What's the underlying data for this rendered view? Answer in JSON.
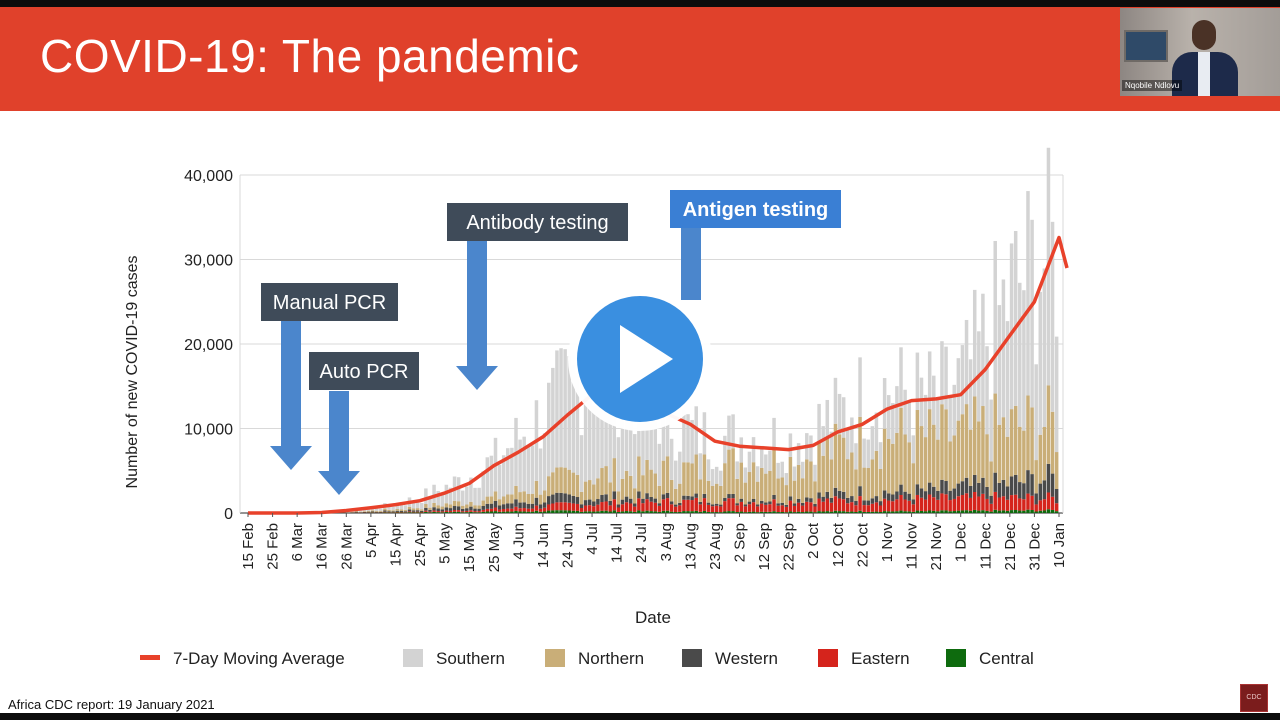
{
  "slide": {
    "title": "COVID-19: The pandemic",
    "footer": "Africa CDC report: 19 January 2021",
    "presenter_name": "Nqobile Ndlovu",
    "logo_text": "CDC"
  },
  "chart_data": {
    "type": "bar",
    "xlabel": "Date",
    "ylabel": "Number of new COVID-19 cases",
    "ylim": [
      0,
      40000
    ],
    "yticks": [
      "0",
      "10,000",
      "20,000",
      "30,000",
      "40,000"
    ],
    "categories": [
      "15 Feb",
      "25 Feb",
      "6 Mar",
      "16 Mar",
      "26 Mar",
      "5 Apr",
      "15 Apr",
      "25 Apr",
      "5 May",
      "15 May",
      "25 May",
      "4 Jun",
      "14 Jun",
      "24 Jun",
      "4 Jul",
      "14 Jul",
      "24 Jul",
      "3 Aug",
      "13 Aug",
      "23 Aug",
      "2 Sep",
      "12 Sep",
      "22 Sep",
      "2 Oct",
      "12 Oct",
      "22 Oct",
      "1 Nov",
      "11 Nov",
      "21 Nov",
      "1 Dec",
      "11 Dec",
      "21 Dec",
      "31 Dec",
      "10 Jan"
    ],
    "series": [
      {
        "name": "Southern",
        "values": [
          0,
          0,
          2,
          20,
          150,
          300,
          600,
          1200,
          2000,
          3000,
          4500,
          6500,
          8500,
          11000,
          12500,
          11500,
          9500,
          6500,
          4500,
          3200,
          3000,
          3000,
          2500,
          3500,
          4000,
          5500,
          5500,
          5000,
          5000,
          6500,
          11000,
          16000,
          19000,
          20000
        ]
      },
      {
        "name": "Northern",
        "values": [
          0,
          0,
          2,
          10,
          60,
          120,
          200,
          300,
          450,
          600,
          800,
          1300,
          1800,
          2400,
          2700,
          2800,
          2900,
          3200,
          3400,
          3800,
          4300,
          4500,
          4200,
          4800,
          5600,
          6200,
          6800,
          6500,
          6300,
          6300,
          6600,
          6500,
          6600,
          6300
        ]
      },
      {
        "name": "Western",
        "values": [
          0,
          0,
          1,
          10,
          40,
          80,
          130,
          220,
          350,
          450,
          550,
          700,
          800,
          800,
          750,
          650,
          550,
          450,
          380,
          380,
          380,
          380,
          450,
          550,
          750,
          900,
          900,
          900,
          1100,
          1300,
          1500,
          1800,
          2200,
          2500
        ]
      },
      {
        "name": "Eastern",
        "values": [
          0,
          0,
          1,
          5,
          20,
          40,
          60,
          100,
          150,
          200,
          300,
          400,
          550,
          750,
          850,
          950,
          1000,
          1100,
          1150,
          1200,
          1150,
          1100,
          1150,
          1200,
          1250,
          1300,
          1350,
          1350,
          1400,
          1450,
          1500,
          1450,
          1400,
          1350
        ]
      },
      {
        "name": "Central",
        "values": [
          0,
          0,
          0,
          5,
          20,
          40,
          60,
          90,
          110,
          140,
          160,
          190,
          230,
          240,
          230,
          220,
          210,
          200,
          190,
          180,
          170,
          170,
          170,
          180,
          190,
          200,
          210,
          210,
          220,
          240,
          260,
          280,
          300,
          320
        ]
      }
    ],
    "moving_average": {
      "name": "7-Day Moving Average",
      "values": [
        0,
        0,
        0,
        60,
        300,
        620,
        1000,
        1450,
        2350,
        3500,
        5600,
        7200,
        9000,
        11600,
        14000,
        13500,
        12600,
        11800,
        10500,
        8500,
        7900,
        7700,
        7500,
        8000,
        9600,
        10500,
        12300,
        13300,
        13500,
        14000,
        17000,
        21000,
        25000,
        32600
      ]
    },
    "moving_average_end": 29000,
    "legend": [
      {
        "name": "7-Day Moving Average",
        "color": "#e8412a",
        "kind": "line"
      },
      {
        "name": "Southern",
        "color": "#d3d3d3",
        "kind": "box"
      },
      {
        "name": "Northern",
        "color": "#c9ae78",
        "kind": "box"
      },
      {
        "name": "Western",
        "color": "#4a4a4a",
        "kind": "box"
      },
      {
        "name": "Eastern",
        "color": "#d5241c",
        "kind": "box"
      },
      {
        "name": "Central",
        "color": "#0e6b0e",
        "kind": "box"
      }
    ],
    "legend_position": "bottom",
    "grid": true,
    "annotations": [
      {
        "text": "Manual PCR",
        "date": "25 Feb",
        "style": "dark"
      },
      {
        "text": "Auto PCR",
        "date": "16 Mar",
        "style": "dark"
      },
      {
        "text": "Antibody testing",
        "date": "15 May",
        "style": "dark"
      },
      {
        "text": "Antigen testing",
        "date": "13 Aug",
        "style": "blue"
      }
    ]
  },
  "colors": {
    "banner": "#e0412b",
    "arrow": "#4b86cc",
    "label_dark": "#3f4b59",
    "label_blue": "#3a7fd4",
    "play_button": "#3a8fe0"
  }
}
